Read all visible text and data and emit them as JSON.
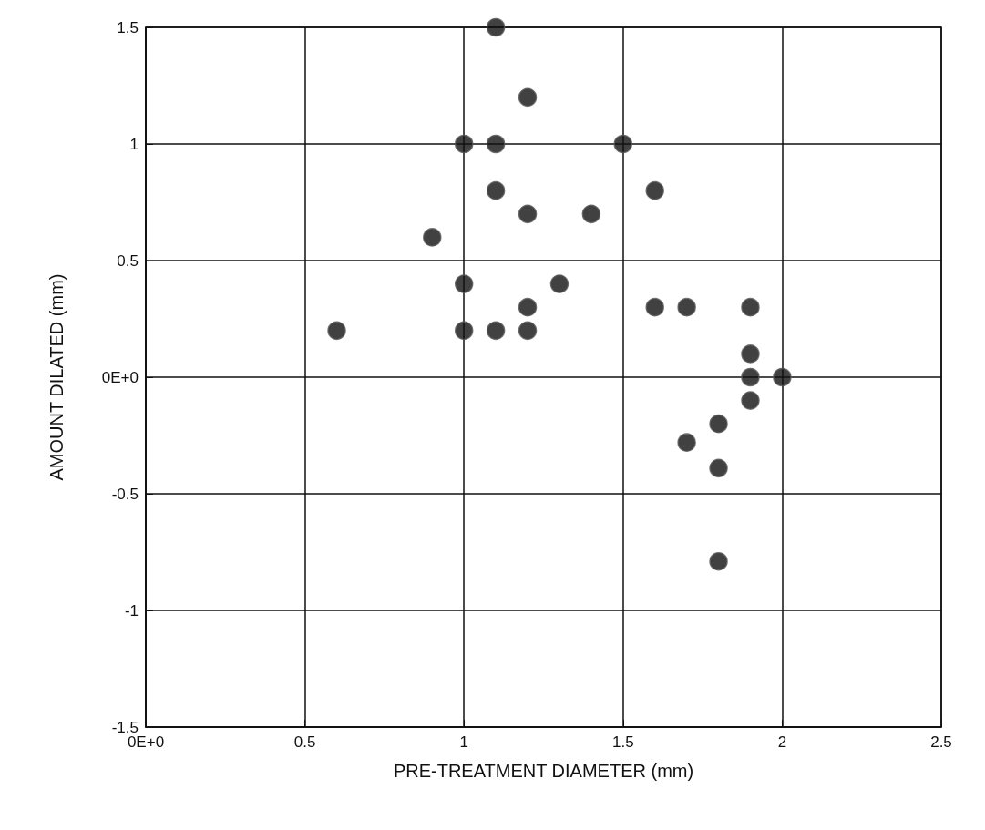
{
  "chart_data": {
    "type": "scatter",
    "xlabel": "PRE-TREATMENT DIAMETER (mm)",
    "ylabel": "AMOUNT DILATED (mm)",
    "x": [
      1.1,
      1.2,
      1.0,
      1.1,
      1.5,
      1.1,
      1.2,
      1.4,
      1.6,
      0.9,
      1.0,
      1.3,
      1.2,
      0.6,
      1.0,
      1.1,
      1.2,
      1.6,
      1.7,
      1.9,
      1.9,
      1.9,
      2.0,
      1.9,
      1.8,
      1.7,
      1.8,
      1.8
    ],
    "values": [
      1.5,
      1.2,
      1.0,
      1.0,
      1.0,
      0.8,
      0.7,
      0.7,
      0.8,
      0.6,
      0.4,
      0.4,
      0.3,
      0.2,
      0.2,
      0.2,
      0.2,
      0.3,
      0.3,
      0.3,
      0.1,
      0.0,
      0.0,
      -0.1,
      -0.2,
      -0.28,
      -0.39,
      -0.79
    ],
    "color": "#111111",
    "marker": "circle",
    "xlim": [
      0,
      2.5
    ],
    "xticks": [
      {
        "value": 0,
        "label": "0E+0"
      },
      0.5,
      1,
      1.5,
      2,
      2.5
    ],
    "ylim": [
      -1.5,
      1.5
    ],
    "yticks": [
      -1.5,
      -1,
      -0.5,
      {
        "value": 0,
        "label": "0E+0"
      },
      0.5,
      1,
      1.5
    ],
    "grid": true
  }
}
